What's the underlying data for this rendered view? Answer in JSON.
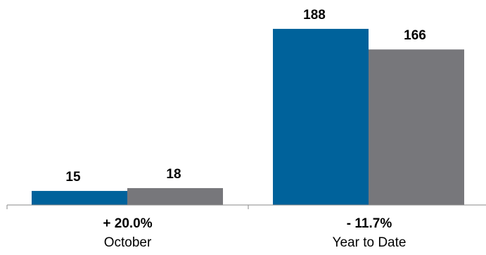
{
  "chart_data": {
    "type": "bar",
    "categories": [
      "October",
      "Year to Date"
    ],
    "category_changes": [
      "+ 20.0%",
      "- 11.7%"
    ],
    "series": [
      {
        "values": [
          15,
          188
        ],
        "color": "#00629B"
      },
      {
        "values": [
          18,
          166
        ],
        "color": "#77777B"
      }
    ],
    "title": "",
    "xlabel": "",
    "ylabel": "",
    "ylim": [
      0,
      200
    ],
    "grid": false,
    "legend": "none"
  }
}
